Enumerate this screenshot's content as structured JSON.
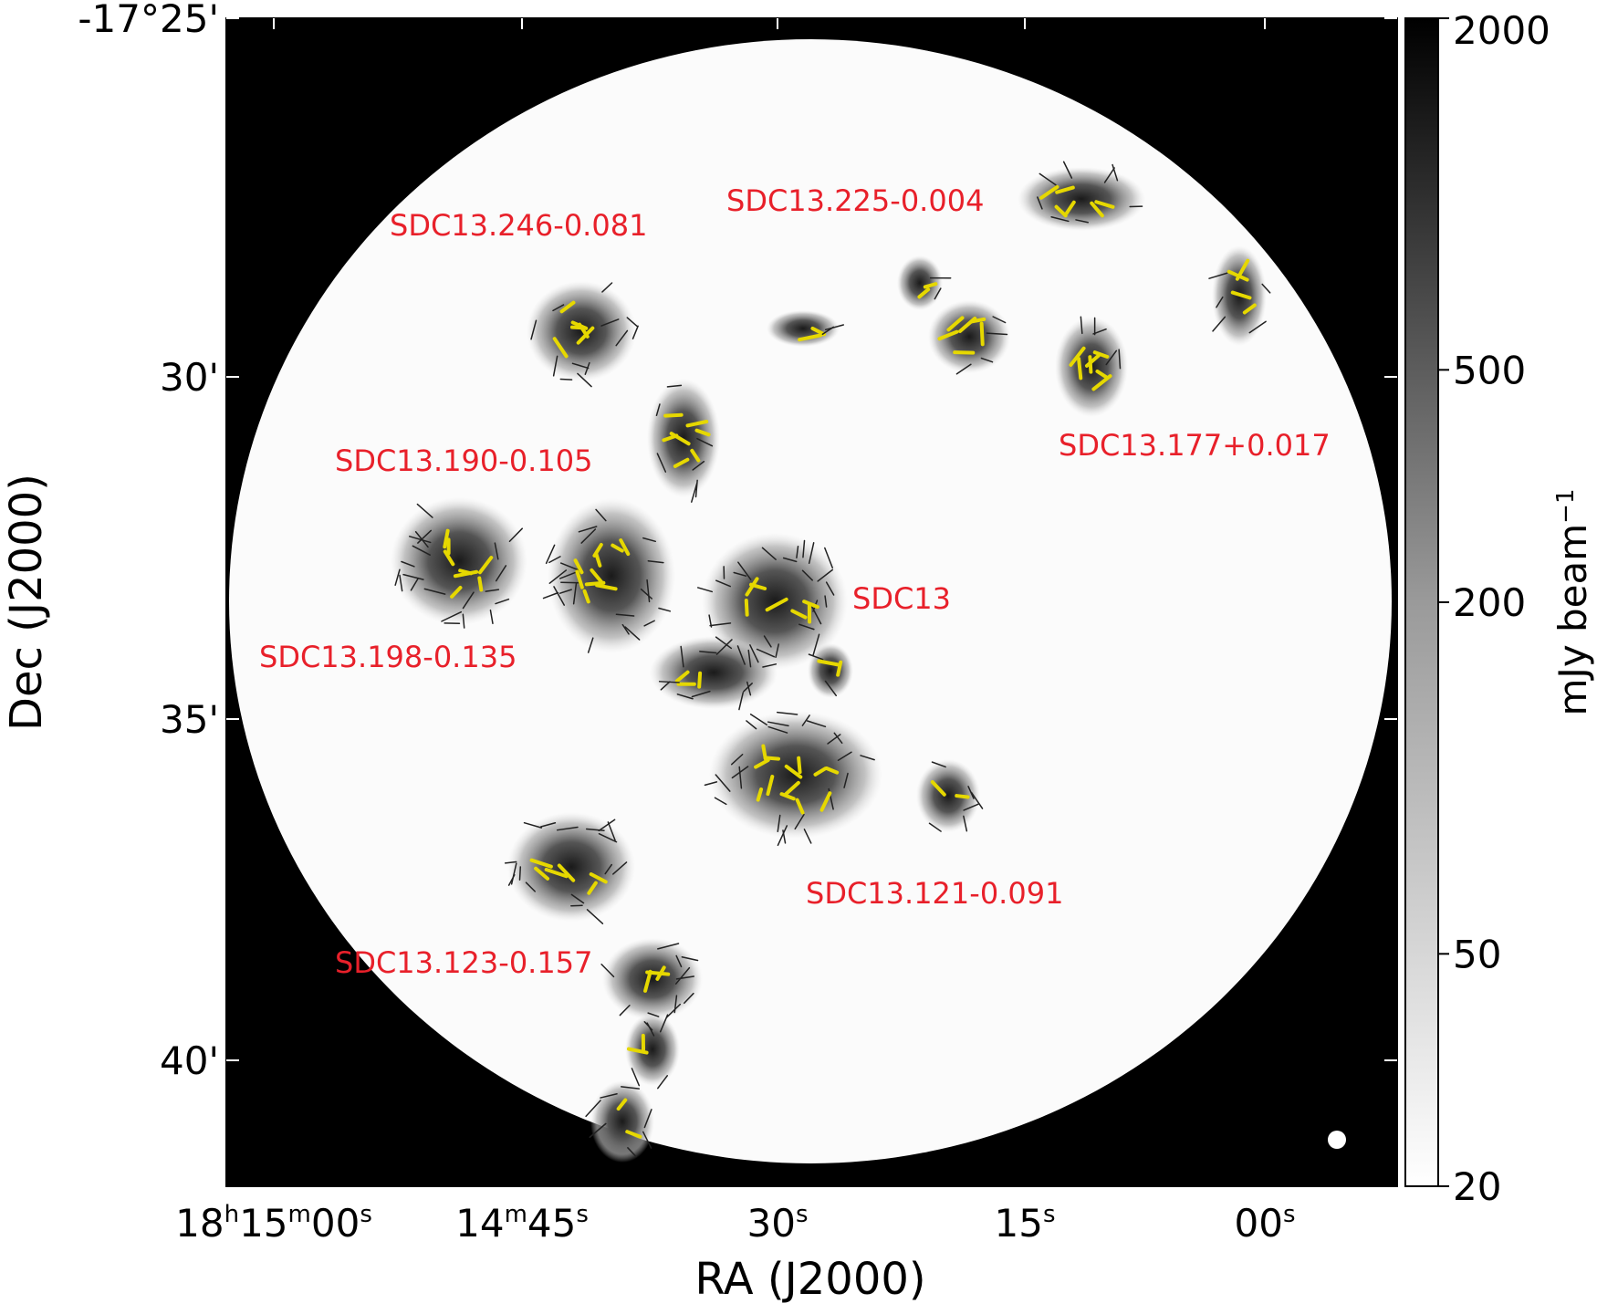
{
  "image": {
    "x_axis": {
      "label": "RA (J2000)",
      "ticks": [
        {
          "parts": [
            "18",
            "h",
            "15",
            "m",
            "00",
            "s"
          ]
        },
        {
          "parts": [
            "14",
            "m",
            "45",
            "s"
          ]
        },
        {
          "parts": [
            "30",
            "s"
          ]
        },
        {
          "parts": [
            "15",
            "s"
          ]
        },
        {
          "parts": [
            "00",
            "s"
          ]
        }
      ]
    },
    "y_axis": {
      "label": "Dec (J2000)",
      "ticks": [
        "-17°25'",
        "30'",
        "35'",
        "40'"
      ]
    },
    "sources": [
      "SDC13.246-0.081",
      "SDC13.225-0.004",
      "SDC13.177+0.017",
      "SDC13.190-0.105",
      "SDC13",
      "SDC13.198-0.135",
      "SDC13.121-0.091",
      "SDC13.123-0.157"
    ]
  },
  "colorbar": {
    "label_parts": [
      "mJy beam",
      "−1"
    ],
    "scale": "log",
    "lim": [
      20,
      2000
    ],
    "ticks": [
      2000,
      500,
      200,
      50,
      20
    ]
  }
}
